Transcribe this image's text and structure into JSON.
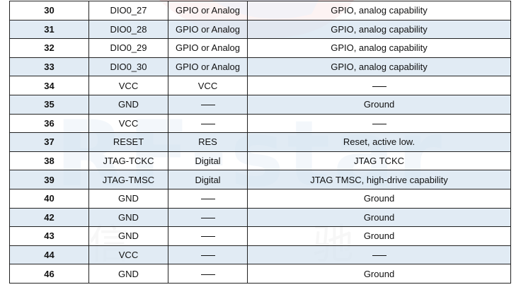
{
  "watermark": {
    "brand": "RF-star",
    "chinese": "信 驰 达",
    "colors": {
      "blue": "#3f7fc4",
      "red": "#d9363e"
    }
  },
  "table": {
    "rows": [
      {
        "pin": "30",
        "name": "DIO0_27",
        "type": "GPIO or Analog",
        "description": "GPIO, analog capability"
      },
      {
        "pin": "31",
        "name": "DIO0_28",
        "type": "GPIO or Analog",
        "description": "GPIO, analog capability"
      },
      {
        "pin": "32",
        "name": "DIO0_29",
        "type": "GPIO or Analog",
        "description": "GPIO, analog capability"
      },
      {
        "pin": "33",
        "name": "DIO0_30",
        "type": "GPIO or Analog",
        "description": "GPIO, analog capability"
      },
      {
        "pin": "34",
        "name": "VCC",
        "type": "VCC",
        "description": ""
      },
      {
        "pin": "35",
        "name": "GND",
        "type": "",
        "description": "Ground"
      },
      {
        "pin": "36",
        "name": "VCC",
        "type": "",
        "description": ""
      },
      {
        "pin": "37",
        "name": "RESET",
        "type": "RES",
        "description": "Reset, active low."
      },
      {
        "pin": "38",
        "name": "JTAG-TCKC",
        "type": "Digital",
        "description": "JTAG TCKC"
      },
      {
        "pin": "39",
        "name": "JTAG-TMSC",
        "type": "Digital",
        "description": "JTAG TMSC, high-drive capability"
      },
      {
        "pin": "40",
        "name": "GND",
        "type": "",
        "description": "Ground"
      },
      {
        "pin": "42",
        "name": "GND",
        "type": "",
        "description": "Ground"
      },
      {
        "pin": "43",
        "name": "GND",
        "type": "",
        "description": "Ground"
      },
      {
        "pin": "44",
        "name": "VCC",
        "type": "",
        "description": ""
      },
      {
        "pin": "46",
        "name": "GND",
        "type": "",
        "description": "Ground"
      }
    ]
  }
}
